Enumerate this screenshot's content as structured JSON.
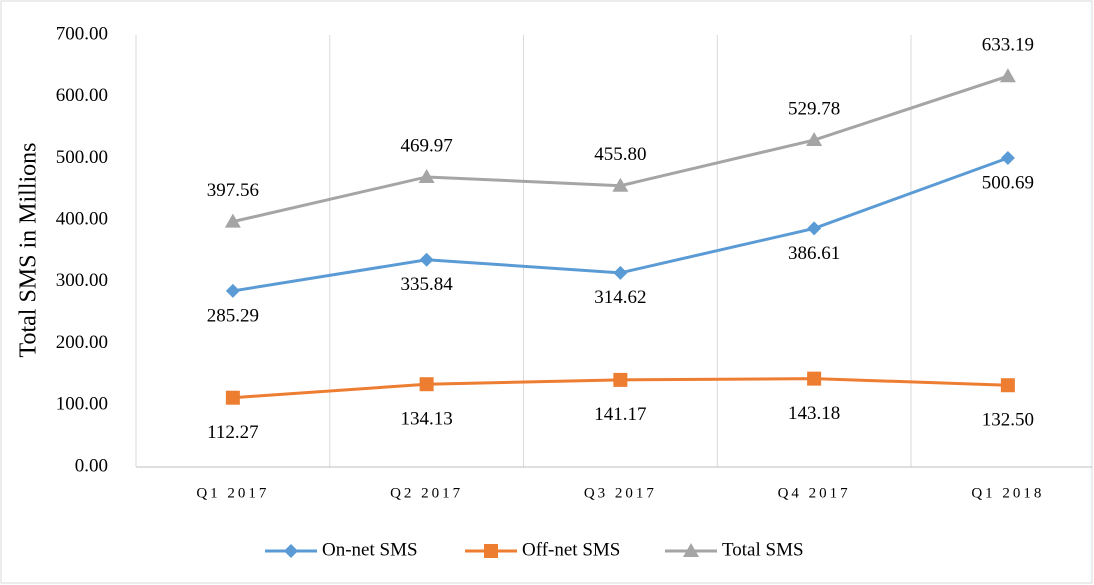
{
  "chart_data": {
    "type": "line",
    "y_label": "Total SMS in Millions",
    "categories": [
      "Q1 2017",
      "Q2 2017",
      "Q3 2017",
      "Q4 2017",
      "Q1 2018"
    ],
    "series": [
      {
        "name": "On-net SMS",
        "color": "#5b9bd5",
        "marker": "diamond",
        "values": [
          285.29,
          335.84,
          314.62,
          386.61,
          500.69
        ],
        "value_labels": [
          "285.29",
          "335.84",
          "314.62",
          "386.61",
          "500.69"
        ]
      },
      {
        "name": "Off-net SMS",
        "color": "#ed7d31",
        "marker": "square",
        "values": [
          112.27,
          134.13,
          141.17,
          143.18,
          132.5
        ],
        "value_labels": [
          "112.27",
          "134.13",
          "141.17",
          "143.18",
          "132.50"
        ]
      },
      {
        "name": "Total SMS",
        "color": "#a5a5a5",
        "marker": "triangle",
        "values": [
          397.56,
          469.97,
          455.8,
          529.78,
          633.19
        ],
        "value_labels": [
          "397.56",
          "469.97",
          "455.80",
          "529.78",
          "633.19"
        ]
      }
    ],
    "ylim": [
      0,
      700
    ],
    "yticks": [
      {
        "value": 0,
        "label": "0.00"
      },
      {
        "value": 100,
        "label": "100.00"
      },
      {
        "value": 200,
        "label": "200.00"
      },
      {
        "value": 300,
        "label": "300.00"
      },
      {
        "value": 400,
        "label": "400.00"
      },
      {
        "value": 500,
        "label": "500.00"
      },
      {
        "value": 600,
        "label": "600.00"
      },
      {
        "value": 700,
        "label": "700.00"
      }
    ],
    "grid": "x",
    "legend": "bottom"
  }
}
